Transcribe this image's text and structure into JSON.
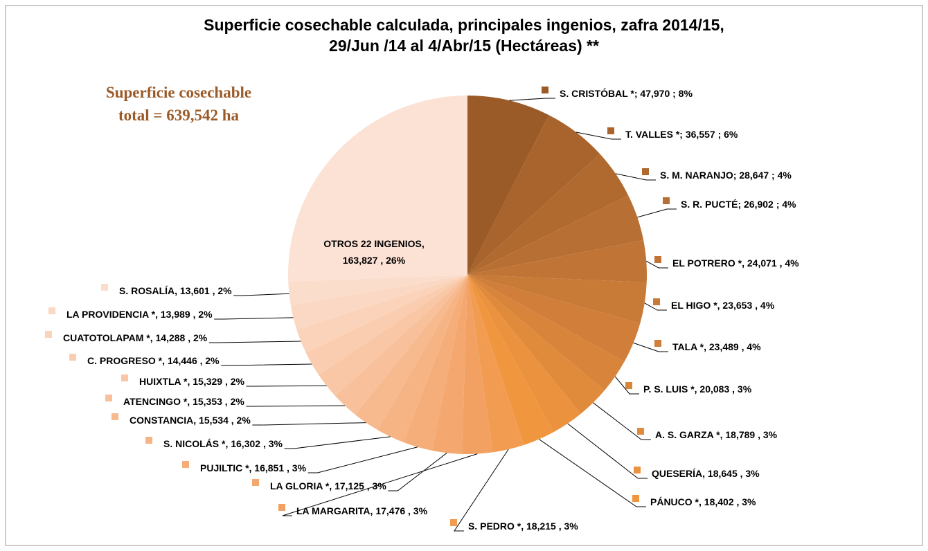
{
  "chart_data": {
    "type": "pie",
    "title": [
      "Superficie cosechable calculada, principales ingenios, zafra 2014/15,",
      "29/Jun /14 al 4/Abr/15 (Hectáreas) **"
    ],
    "annotation": [
      "Superficie cosechable",
      "total = 639,542 ha"
    ],
    "labels": [
      "S. CRISTÓBAL *;  47,970 ; 8%",
      "T. VALLES *;  36,557 ; 6%",
      "S. M. NARANJO;  28,647 ; 4%",
      "S. R. PUCTÉ;  26,902 ; 4%",
      "EL POTRERO  *,  24,071 , 4%",
      "EL HIGO *,  23,653 , 4%",
      "TALA *,  23,489 , 4%",
      "P. S. LUIS *,  20,083 , 3%",
      "A. S. GARZA *,  18,789 , 3%",
      "QUESERÍA,  18,645 , 3%",
      "PÁNUCO *,  18,402 , 3%",
      "S. PEDRO *,  18,215 , 3%",
      "LA MARGARITA,  17,476 , 3%",
      "LA GLORIA *,  17,125 , 3%",
      "PUJILTIC *,  16,851 , 3%",
      "S. NICOLÁS *,  16,302 , 3%",
      "CONSTANCIA,  15,534 , 2%",
      "ATENCINGO *,  15,353 , 2%",
      "HUIXTLA *,  15,329 , 2%",
      "C. PROGRESO *,  14,446 , 2%",
      "CUATOTOLAPAM *,  14,288 , 2%",
      "LA PROVIDENCIA *,  13,989 , 2%",
      "S. ROSALÍA,  13,601 , 2%",
      "OTROS 22 INGENIOS,\n163,827 , 26%"
    ],
    "values": [
      47970,
      36557,
      28647,
      26902,
      24071,
      23653,
      23489,
      20083,
      18789,
      18645,
      18402,
      18215,
      17476,
      17125,
      16851,
      16302,
      15534,
      15353,
      15329,
      14446,
      14288,
      13989,
      13601,
      163827
    ],
    "colors": [
      "#9b5b28",
      "#a8642c",
      "#b06a30",
      "#b86f33",
      "#c07435",
      "#c87a37",
      "#d07e39",
      "#d8843b",
      "#e08a3c",
      "#eb923e",
      "#f0963f",
      "#f29c52",
      "#f2a162",
      "#f4a76e",
      "#f5ae7a",
      "#f6b484",
      "#f7ba8f",
      "#f8c19b",
      "#f9c7a5",
      "#facdb0",
      "#fad3ba",
      "#fbd8c3",
      "#fbddcb",
      "#fbe2d5"
    ]
  }
}
